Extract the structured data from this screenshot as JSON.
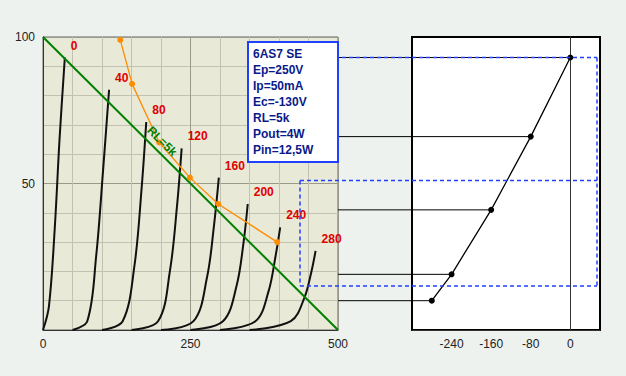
{
  "chart_data": [
    {
      "type": "line",
      "xlim": [
        0,
        500
      ],
      "xticks": [
        0,
        250,
        500
      ],
      "ylim": [
        0,
        100
      ],
      "yticks": [
        50,
        100
      ],
      "grid": true,
      "annotations": [
        "6AS7 SE",
        "Ep=250V",
        "Ip=50mA",
        "Ec=-130V",
        "RL=5k",
        "Pout=4W",
        "Pin=12,5W"
      ],
      "ref_levels": [
        93,
        51,
        15
      ],
      "series": [
        {
          "name": "0",
          "color": "#111111",
          "marker": "none",
          "line_style": "solid",
          "x": [
            0,
            10,
            20,
            28,
            37
          ],
          "values": [
            0,
            8,
            35,
            65,
            93
          ]
        },
        {
          "name": "40",
          "color": "#111111",
          "marker": "none",
          "line_style": "solid",
          "x": [
            50,
            75,
            90,
            102,
            112
          ],
          "values": [
            0,
            3,
            25,
            55,
            82
          ]
        },
        {
          "name": "80",
          "color": "#111111",
          "marker": "none",
          "line_style": "solid",
          "x": [
            100,
            135,
            155,
            167,
            175
          ],
          "values": [
            0,
            3,
            22,
            48,
            71
          ]
        },
        {
          "name": "120",
          "color": "#111111",
          "marker": "none",
          "line_style": "solid",
          "x": [
            150,
            195,
            215,
            227,
            235
          ],
          "values": [
            0,
            3,
            20,
            42,
            62
          ]
        },
        {
          "name": "160",
          "color": "#111111",
          "marker": "none",
          "line_style": "solid",
          "x": [
            200,
            255,
            278,
            290,
            298
          ],
          "values": [
            0,
            3,
            18,
            36,
            52
          ]
        },
        {
          "name": "200",
          "color": "#111111",
          "marker": "none",
          "line_style": "solid",
          "x": [
            250,
            305,
            328,
            340,
            347
          ],
          "values": [
            0,
            3,
            15,
            30,
            43
          ]
        },
        {
          "name": "240",
          "color": "#111111",
          "marker": "none",
          "line_style": "solid",
          "x": [
            300,
            360,
            382,
            394,
            402
          ],
          "values": [
            0,
            3,
            13,
            25,
            35
          ]
        },
        {
          "name": "280",
          "color": "#111111",
          "marker": "none",
          "line_style": "solid",
          "x": [
            350,
            420,
            443,
            455,
            462
          ],
          "values": [
            0,
            3,
            11,
            20,
            27
          ]
        },
        {
          "name": "RL=5k",
          "color": "#008000",
          "marker": "none",
          "line_style": "solid",
          "x": [
            0,
            500
          ],
          "values": [
            100,
            0
          ]
        },
        {
          "color": "#ff8c00",
          "marker": "circle",
          "line_style": "solid",
          "x": [
            131,
            151,
            197,
            249,
            297,
            397
          ],
          "values": [
            99,
            84,
            64,
            52,
            43,
            30
          ]
        }
      ]
    },
    {
      "type": "line",
      "xlim": [
        -320,
        60
      ],
      "xticks": [
        -240,
        -160,
        -80,
        0
      ],
      "ylim": [
        0,
        100
      ],
      "tick_labels": "x",
      "grid": false,
      "series": [
        {
          "color": "#000000",
          "marker": "circle",
          "line_style": "solid",
          "x": [
            -280,
            -240,
            -160,
            -80,
            0
          ],
          "values": [
            10,
            19,
            41,
            66,
            93
          ]
        }
      ]
    }
  ]
}
